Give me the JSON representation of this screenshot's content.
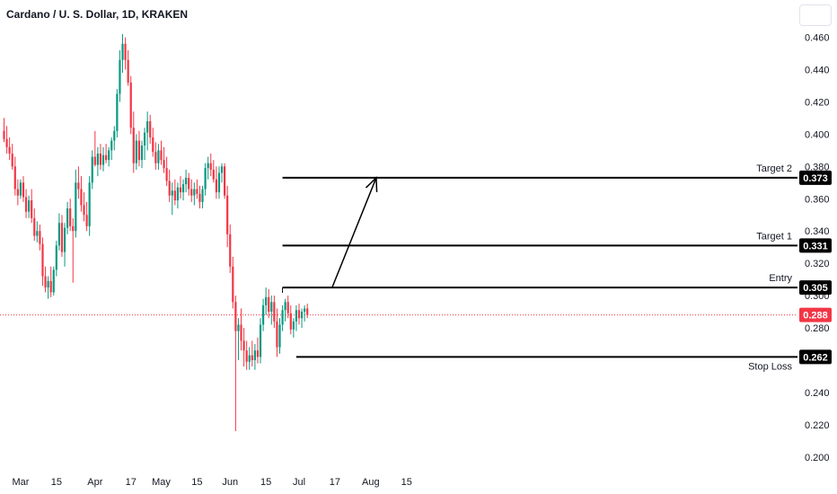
{
  "header": {
    "title": "Cardano / U. S. Dollar, 1D, KRAKEN"
  },
  "chart_data": {
    "type": "candlestick",
    "title": "Cardano / U. S. Dollar, 1D, KRAKEN",
    "x_ticks": [
      "Mar",
      "15",
      "Apr",
      "17",
      "May",
      "15",
      "Jun",
      "15",
      "Jul",
      "17",
      "Aug",
      "15"
    ],
    "y_ticks": [
      "0.460",
      "0.440",
      "0.420",
      "0.400",
      "0.380",
      "0.360",
      "0.340",
      "0.320",
      "0.300",
      "0.280",
      "0.260",
      "0.240",
      "0.220",
      "0.200"
    ],
    "ylim": [
      0.196,
      0.472
    ],
    "y_tick_values": [
      0.46,
      0.44,
      0.42,
      0.4,
      0.38,
      0.36,
      0.34,
      0.32,
      0.3,
      0.28,
      0.26,
      0.24,
      0.22,
      0.2
    ],
    "x_tick_index": [
      6,
      19,
      33,
      46,
      57,
      70,
      82,
      95,
      107,
      120,
      133,
      146
    ],
    "current_price": {
      "label": "0.288",
      "value": 0.288,
      "color": "#f23645"
    },
    "colors": {
      "up": "#089981",
      "down": "#f23645",
      "line": "#000000"
    },
    "levels": [
      {
        "name": "Target 2",
        "label": "0.373",
        "value": 0.373,
        "from_index": 101
      },
      {
        "name": "Target 1",
        "label": "0.331",
        "value": 0.331,
        "from_index": 101
      },
      {
        "name": "Entry",
        "label": "0.305",
        "value": 0.305,
        "from_index": 101
      },
      {
        "name": "Stop Loss",
        "label": "0.262",
        "value": 0.262,
        "from_index": 106
      }
    ],
    "arrow": {
      "from_index": 119,
      "from_value": 0.305,
      "to_index": 135,
      "to_value": 0.373
    },
    "candles": [
      [
        0.402,
        0.41,
        0.395,
        0.397
      ],
      [
        0.397,
        0.405,
        0.388,
        0.392
      ],
      [
        0.392,
        0.398,
        0.384,
        0.388
      ],
      [
        0.388,
        0.394,
        0.378,
        0.38
      ],
      [
        0.38,
        0.386,
        0.362,
        0.366
      ],
      [
        0.366,
        0.372,
        0.356,
        0.362
      ],
      [
        0.362,
        0.372,
        0.36,
        0.37
      ],
      [
        0.37,
        0.374,
        0.358,
        0.361
      ],
      [
        0.361,
        0.366,
        0.348,
        0.352
      ],
      [
        0.352,
        0.362,
        0.348,
        0.359
      ],
      [
        0.359,
        0.366,
        0.345,
        0.348
      ],
      [
        0.348,
        0.354,
        0.334,
        0.337
      ],
      [
        0.337,
        0.346,
        0.333,
        0.34
      ],
      [
        0.34,
        0.344,
        0.328,
        0.332
      ],
      [
        0.332,
        0.336,
        0.306,
        0.312
      ],
      [
        0.312,
        0.318,
        0.302,
        0.305
      ],
      [
        0.305,
        0.312,
        0.298,
        0.309
      ],
      [
        0.309,
        0.318,
        0.299,
        0.302
      ],
      [
        0.302,
        0.318,
        0.3,
        0.316
      ],
      [
        0.316,
        0.334,
        0.312,
        0.331
      ],
      [
        0.331,
        0.351,
        0.328,
        0.345
      ],
      [
        0.345,
        0.35,
        0.324,
        0.327
      ],
      [
        0.327,
        0.345,
        0.318,
        0.342
      ],
      [
        0.342,
        0.358,
        0.338,
        0.354
      ],
      [
        0.354,
        0.36,
        0.34,
        0.343
      ],
      [
        0.343,
        0.348,
        0.308,
        0.34
      ],
      [
        0.34,
        0.378,
        0.336,
        0.37
      ],
      [
        0.37,
        0.38,
        0.36,
        0.366
      ],
      [
        0.366,
        0.374,
        0.352,
        0.356
      ],
      [
        0.356,
        0.364,
        0.346,
        0.35
      ],
      [
        0.35,
        0.358,
        0.34,
        0.343
      ],
      [
        0.343,
        0.374,
        0.337,
        0.37
      ],
      [
        0.37,
        0.39,
        0.366,
        0.386
      ],
      [
        0.386,
        0.402,
        0.38,
        0.381
      ],
      [
        0.381,
        0.392,
        0.374,
        0.388
      ],
      [
        0.388,
        0.394,
        0.378,
        0.381
      ],
      [
        0.381,
        0.392,
        0.377,
        0.387
      ],
      [
        0.387,
        0.394,
        0.382,
        0.384
      ],
      [
        0.384,
        0.392,
        0.38,
        0.39
      ],
      [
        0.39,
        0.398,
        0.384,
        0.396
      ],
      [
        0.396,
        0.405,
        0.39,
        0.402
      ],
      [
        0.402,
        0.428,
        0.398,
        0.425
      ],
      [
        0.425,
        0.452,
        0.42,
        0.446
      ],
      [
        0.446,
        0.462,
        0.438,
        0.456
      ],
      [
        0.456,
        0.46,
        0.44,
        0.446
      ],
      [
        0.446,
        0.452,
        0.43,
        0.432
      ],
      [
        0.432,
        0.436,
        0.4,
        0.404
      ],
      [
        0.404,
        0.414,
        0.376,
        0.382
      ],
      [
        0.382,
        0.4,
        0.378,
        0.396
      ],
      [
        0.396,
        0.402,
        0.38,
        0.384
      ],
      [
        0.384,
        0.396,
        0.379,
        0.393
      ],
      [
        0.393,
        0.404,
        0.384,
        0.401
      ],
      [
        0.401,
        0.414,
        0.39,
        0.408
      ],
      [
        0.408,
        0.412,
        0.394,
        0.398
      ],
      [
        0.398,
        0.404,
        0.386,
        0.389
      ],
      [
        0.389,
        0.395,
        0.378,
        0.382
      ],
      [
        0.382,
        0.394,
        0.378,
        0.39
      ],
      [
        0.39,
        0.396,
        0.381,
        0.384
      ],
      [
        0.384,
        0.392,
        0.376,
        0.379
      ],
      [
        0.379,
        0.386,
        0.368,
        0.371
      ],
      [
        0.371,
        0.378,
        0.358,
        0.362
      ],
      [
        0.362,
        0.37,
        0.35,
        0.365
      ],
      [
        0.365,
        0.372,
        0.356,
        0.359
      ],
      [
        0.359,
        0.37,
        0.354,
        0.367
      ],
      [
        0.367,
        0.374,
        0.36,
        0.364
      ],
      [
        0.364,
        0.372,
        0.359,
        0.369
      ],
      [
        0.369,
        0.378,
        0.364,
        0.373
      ],
      [
        0.373,
        0.376,
        0.362,
        0.366
      ],
      [
        0.366,
        0.372,
        0.358,
        0.362
      ],
      [
        0.362,
        0.37,
        0.356,
        0.366
      ],
      [
        0.366,
        0.372,
        0.36,
        0.363
      ],
      [
        0.363,
        0.368,
        0.354,
        0.358
      ],
      [
        0.358,
        0.368,
        0.354,
        0.366
      ],
      [
        0.366,
        0.382,
        0.362,
        0.379
      ],
      [
        0.379,
        0.386,
        0.372,
        0.382
      ],
      [
        0.382,
        0.388,
        0.374,
        0.378
      ],
      [
        0.378,
        0.384,
        0.37,
        0.372
      ],
      [
        0.372,
        0.38,
        0.36,
        0.364
      ],
      [
        0.364,
        0.38,
        0.36,
        0.376
      ],
      [
        0.376,
        0.382,
        0.37,
        0.38
      ],
      [
        0.38,
        0.382,
        0.36,
        0.362
      ],
      [
        0.362,
        0.368,
        0.33,
        0.338
      ],
      [
        0.338,
        0.344,
        0.314,
        0.318
      ],
      [
        0.318,
        0.324,
        0.292,
        0.296
      ],
      [
        0.296,
        0.3,
        0.216,
        0.278
      ],
      [
        0.278,
        0.286,
        0.26,
        0.282
      ],
      [
        0.282,
        0.292,
        0.266,
        0.272
      ],
      [
        0.272,
        0.28,
        0.256,
        0.266
      ],
      [
        0.266,
        0.272,
        0.254,
        0.259
      ],
      [
        0.259,
        0.268,
        0.254,
        0.263
      ],
      [
        0.263,
        0.272,
        0.256,
        0.26
      ],
      [
        0.26,
        0.27,
        0.254,
        0.266
      ],
      [
        0.266,
        0.274,
        0.258,
        0.262
      ],
      [
        0.262,
        0.286,
        0.258,
        0.282
      ],
      [
        0.282,
        0.298,
        0.278,
        0.294
      ],
      [
        0.294,
        0.305,
        0.288,
        0.299
      ],
      [
        0.299,
        0.304,
        0.286,
        0.29
      ],
      [
        0.29,
        0.3,
        0.282,
        0.296
      ],
      [
        0.296,
        0.3,
        0.28,
        0.284
      ],
      [
        0.284,
        0.292,
        0.262,
        0.268
      ],
      [
        0.268,
        0.286,
        0.264,
        0.282
      ],
      [
        0.282,
        0.294,
        0.278,
        0.291
      ],
      [
        0.291,
        0.298,
        0.284,
        0.296
      ],
      [
        0.296,
        0.3,
        0.286,
        0.289
      ],
      [
        0.289,
        0.294,
        0.276,
        0.279
      ],
      [
        0.279,
        0.286,
        0.274,
        0.284
      ],
      [
        0.284,
        0.294,
        0.278,
        0.291
      ],
      [
        0.291,
        0.295,
        0.282,
        0.286
      ],
      [
        0.286,
        0.292,
        0.28,
        0.29
      ],
      [
        0.29,
        0.294,
        0.284,
        0.292
      ],
      [
        0.292,
        0.295,
        0.286,
        0.288
      ]
    ]
  }
}
